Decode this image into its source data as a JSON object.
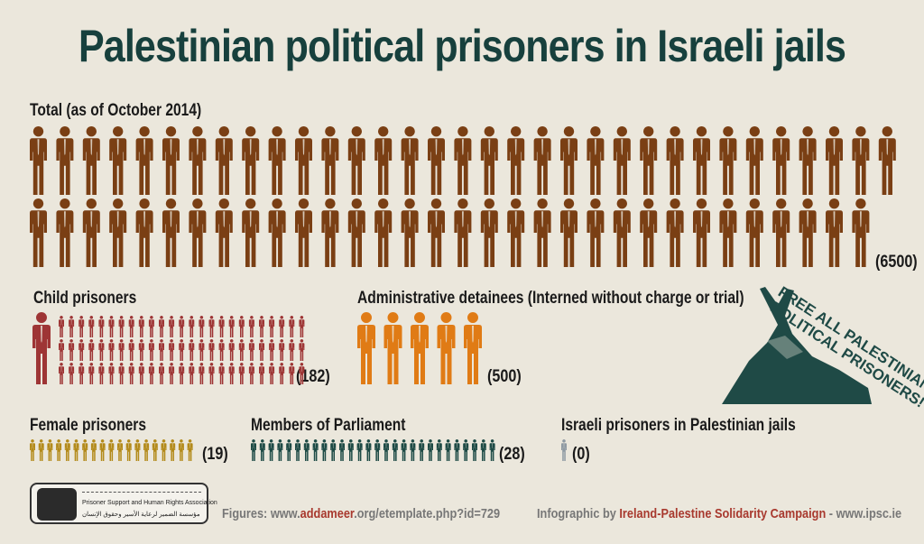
{
  "title": "Palestinian political prisoners in Israeli jails",
  "colors": {
    "total": "#7a3f14",
    "child": "#9e3535",
    "admin": "#e07b15",
    "female": "#b38a1a",
    "mp": "#1d4a45",
    "israeli": "#8f9aa3",
    "title": "#17403d"
  },
  "chart_data": {
    "type": "pictogram",
    "categories": [
      {
        "label": "Total (as of October 2014)",
        "value": 6500,
        "value_label": "(6500)"
      },
      {
        "label": "Child prisoners",
        "value": 182,
        "value_label": "(182)"
      },
      {
        "label": "Administrative detainees (Interned without charge or trial)",
        "value": 500,
        "value_label": "(500)"
      },
      {
        "label": "Female prisoners",
        "value": 19,
        "value_label": "(19)"
      },
      {
        "label": "Members of Parliament",
        "value": 28,
        "value_label": "(28)"
      },
      {
        "label": "Israeli prisoners in Palestinian jails",
        "value": 0,
        "value_label": "(0)"
      }
    ]
  },
  "badge": {
    "text": "FREE ALL PALESTINIAN POLITICAL PRISONERS!"
  },
  "footer": {
    "figures_prefix": "Figures: www.",
    "figures_highlight": "addameer",
    "figures_suffix": ".org/etemplate.php?id=729",
    "credit_prefix": "Infographic by ",
    "credit_highlight": "Ireland-Palestine Solidarity Campaign",
    "credit_suffix": " - www.ipsc.ie"
  },
  "logo": {
    "line1": "Prisoner Support and Human Rights Association",
    "line2": "مؤسسة الضمير لرعاية الأسير وحقوق الإنسان"
  }
}
